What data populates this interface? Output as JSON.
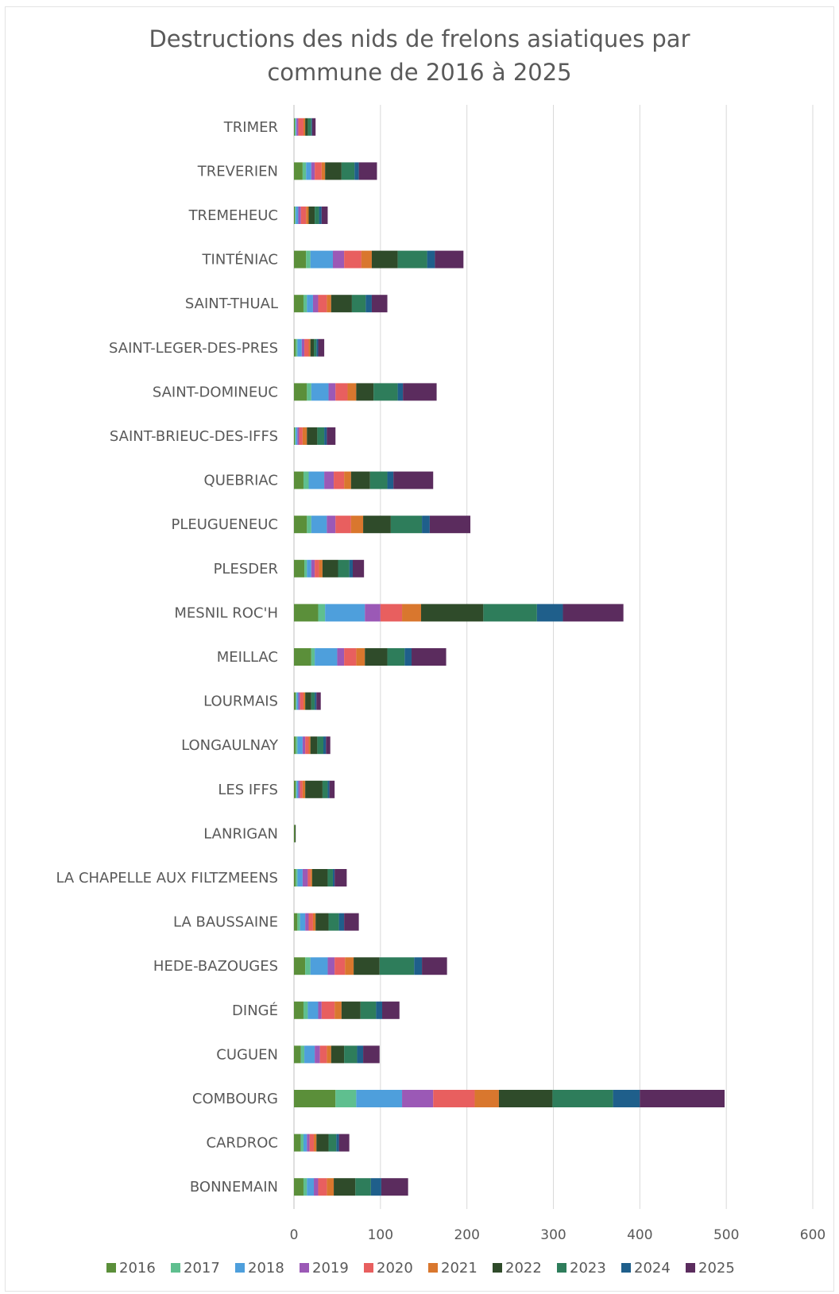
{
  "chart_data": {
    "type": "bar",
    "orientation": "horizontal",
    "stacked": true,
    "title": [
      "Destructions des nids de frelons asiatiques par",
      "commune de 2016 à 2025"
    ],
    "categories": [
      "TRIMER",
      "TREVERIEN",
      "TREMEHEUC",
      "TINTÉNIAC",
      "SAINT-THUAL",
      "SAINT-LEGER-DES-PRES",
      "SAINT-DOMINEUC",
      "SAINT-BRIEUC-DES-IFFS",
      "QUEBRIAC",
      "PLEUGUENEUC",
      "PLESDER",
      "MESNIL ROC'H",
      "MEILLAC",
      "LOURMAIS",
      "LONGAULNAY",
      "LES IFFS",
      "LANRIGAN",
      "LA CHAPELLE AUX FILTZMEENS",
      "LA BAUSSAINE",
      "HEDE-BAZOUGES",
      "DINGÉ",
      "CUGUEN",
      "COMBOURG",
      "CARDROC",
      "BONNEMAIN"
    ],
    "series": [
      {
        "name": "2016",
        "color": "#5b8f3a",
        "values": [
          1,
          10,
          1,
          14,
          11,
          2,
          15,
          1,
          11,
          15,
          12,
          28,
          20,
          2,
          2,
          2,
          1,
          2,
          4,
          13,
          11,
          8,
          48,
          8,
          11
        ]
      },
      {
        "name": "2017",
        "color": "#5fbf8f",
        "values": [
          1,
          4,
          1,
          5,
          4,
          2,
          5,
          1,
          6,
          5,
          3,
          8,
          4,
          1,
          2,
          1,
          0,
          2,
          3,
          6,
          5,
          4,
          24,
          3,
          4
        ]
      },
      {
        "name": "2018",
        "color": "#4e9fdc",
        "values": [
          1,
          6,
          3,
          26,
          7,
          5,
          20,
          2,
          18,
          18,
          5,
          46,
          26,
          2,
          6,
          2,
          0,
          6,
          6,
          20,
          12,
          12,
          53,
          4,
          8
        ]
      },
      {
        "name": "2019",
        "color": "#9b59b6",
        "values": [
          2,
          4,
          3,
          13,
          6,
          3,
          8,
          2,
          11,
          10,
          4,
          18,
          8,
          2,
          3,
          2,
          0,
          6,
          4,
          8,
          4,
          6,
          36,
          3,
          5
        ]
      },
      {
        "name": "2020",
        "color": "#e85f5f",
        "values": [
          6,
          8,
          6,
          20,
          10,
          5,
          14,
          4,
          12,
          18,
          5,
          25,
          14,
          4,
          4,
          3,
          0,
          3,
          5,
          12,
          15,
          8,
          48,
          5,
          10
        ]
      },
      {
        "name": "2021",
        "color": "#d9772e",
        "values": [
          2,
          4,
          3,
          12,
          5,
          2,
          10,
          5,
          8,
          14,
          4,
          22,
          10,
          2,
          2,
          3,
          0,
          2,
          3,
          10,
          8,
          5,
          28,
          3,
          8
        ]
      },
      {
        "name": "2022",
        "color": "#2f4b2a",
        "values": [
          3,
          19,
          7,
          30,
          24,
          4,
          20,
          12,
          22,
          32,
          18,
          72,
          26,
          7,
          8,
          20,
          1,
          18,
          15,
          30,
          22,
          15,
          62,
          14,
          25
        ]
      },
      {
        "name": "2023",
        "color": "#2e7d5b",
        "values": [
          4,
          15,
          5,
          34,
          16,
          3,
          28,
          8,
          20,
          36,
          13,
          62,
          20,
          4,
          7,
          6,
          0,
          6,
          12,
          40,
          18,
          15,
          70,
          9,
          18
        ]
      },
      {
        "name": "2024",
        "color": "#1f5f8b",
        "values": [
          1,
          5,
          3,
          9,
          7,
          2,
          6,
          3,
          7,
          9,
          4,
          30,
          8,
          2,
          3,
          2,
          0,
          2,
          6,
          9,
          7,
          7,
          31,
          3,
          12
        ]
      },
      {
        "name": "2025",
        "color": "#5b2c5e",
        "values": [
          4,
          21,
          7,
          33,
          18,
          7,
          39,
          10,
          46,
          47,
          13,
          70,
          40,
          5,
          5,
          6,
          0,
          14,
          17,
          29,
          20,
          19,
          98,
          12,
          31
        ]
      }
    ],
    "xlim": [
      0,
      600
    ],
    "xticks": [
      "0",
      "100",
      "200",
      "300",
      "400",
      "500",
      "600"
    ],
    "grid": true,
    "legend_position": "bottom"
  }
}
